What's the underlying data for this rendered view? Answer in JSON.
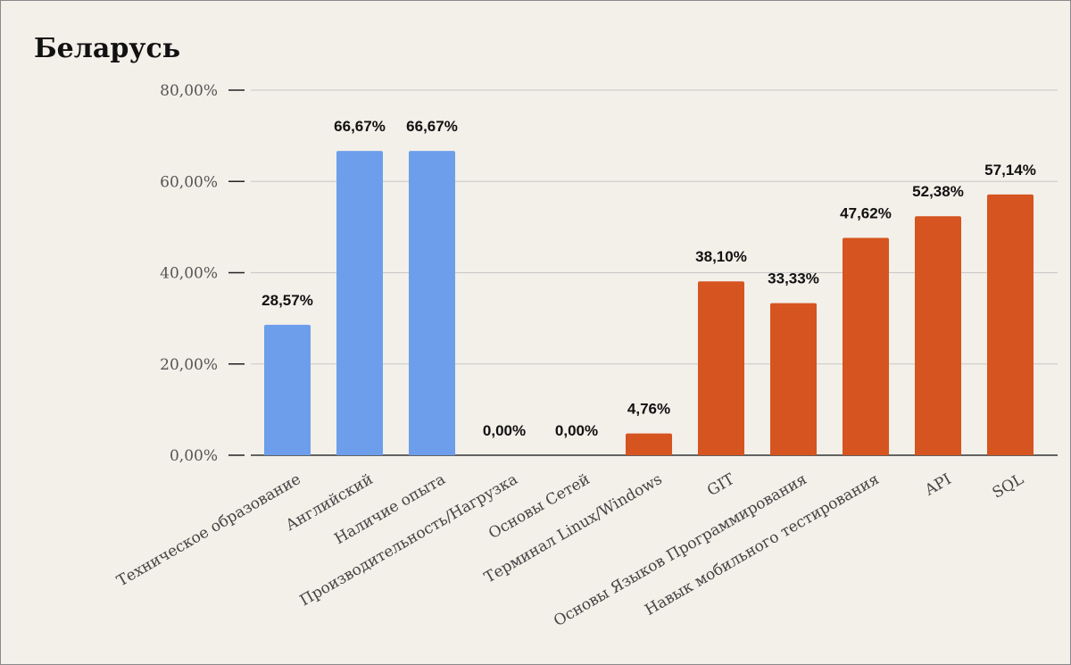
{
  "chart_data": {
    "type": "bar",
    "title": "Беларусь",
    "categories": [
      "Техническое образование",
      "Английский",
      "Наличие опыта",
      "Производительность/Нагрузка",
      "Основы Сетей",
      "Терминал Linux/Windows",
      "GIT",
      "Основы Языков Программирования",
      "Навык мобильного тестирования",
      "API",
      "SQL"
    ],
    "values": [
      28.57,
      66.67,
      66.67,
      0.0,
      0.0,
      4.76,
      38.1,
      33.33,
      47.62,
      52.38,
      57.14
    ],
    "data_labels": [
      "28,57%",
      "66,67%",
      "66,67%",
      "0,00%",
      "0,00%",
      "4,76%",
      "38,10%",
      "33,33%",
      "47,62%",
      "52,38%",
      "57,14%"
    ],
    "bar_colors": [
      "#6d9eeb",
      "#6d9eeb",
      "#6d9eeb",
      "#6d9eeb",
      "#6d9eeb",
      "#d6541f",
      "#d6541f",
      "#d6541f",
      "#d6541f",
      "#d6541f",
      "#d6541f"
    ],
    "yticks": [
      0,
      20,
      40,
      60,
      80
    ],
    "ytick_labels": [
      "0,00%",
      "20,00%",
      "40,00%",
      "60,00%",
      "80,00%"
    ],
    "ylim": [
      0,
      80
    ],
    "xlabel": "",
    "ylabel": "",
    "grid": true,
    "legend": "none",
    "colors": {
      "background": "#f3efe9",
      "grid": "#c8c8c8",
      "axis": "#333333"
    }
  }
}
